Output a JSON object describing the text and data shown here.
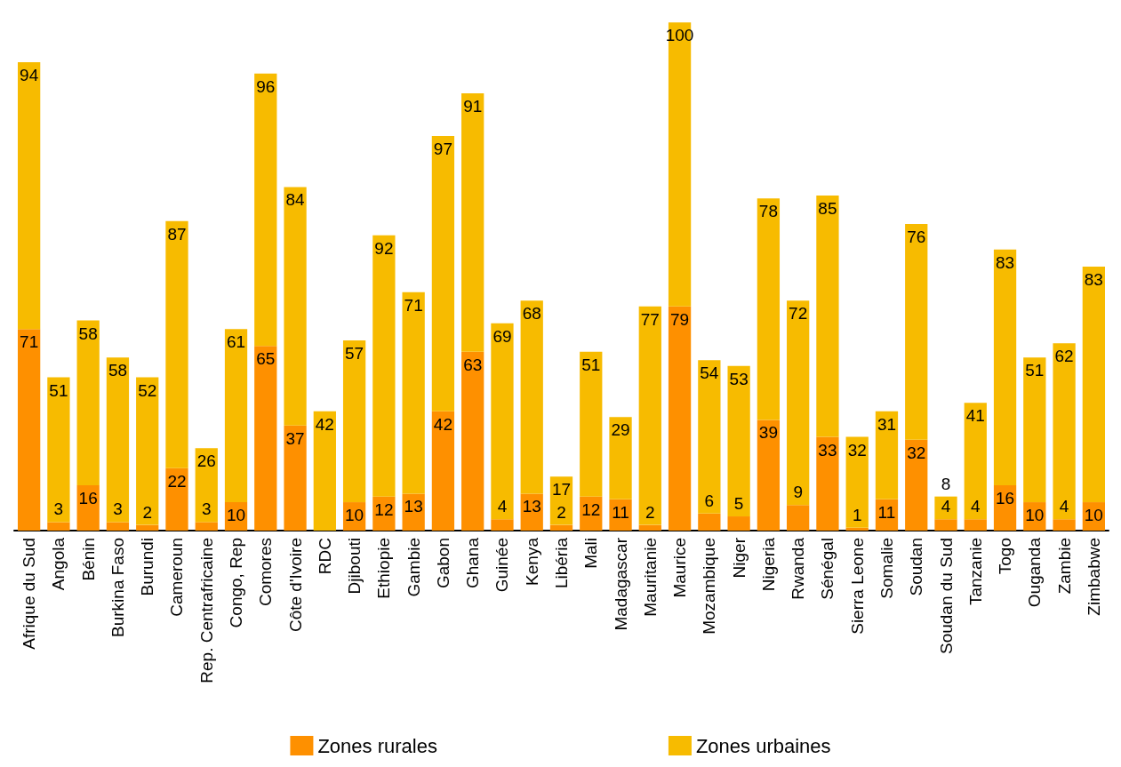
{
  "chart_data": {
    "type": "bar",
    "stacked": true,
    "data_labels": true,
    "legend": "bottom",
    "grid": false,
    "categories": [
      "Afrique du Sud",
      "Angola",
      "Bénin",
      "Burkina Faso",
      "Burundi",
      "Cameroun",
      "Rep. Centrafricaine",
      "Congo, Rep",
      "Comores",
      "Côte d'Ivoire",
      "RDC",
      "Djibouti",
      "Ethiopie",
      "Gambie",
      "Gabon",
      "Ghana",
      "Guinée",
      "Kenya",
      "Libéria",
      "Mali",
      "Madagascar",
      "Mauritanie",
      "Maurice",
      "Mozambique",
      "Niger",
      "Nigeria",
      "Rwanda",
      "Sénégal",
      "Sierra Leone",
      "Somalie",
      "Soudan",
      "Soudan du Sud",
      "Tanzanie",
      "Togo",
      "Ouganda",
      "Zambie",
      "Zimbabwe"
    ],
    "series": [
      {
        "name": "Zones rurales",
        "color": "#fe9000",
        "values": [
          71,
          3,
          16,
          3,
          2,
          22,
          3,
          10,
          65,
          37,
          null,
          10,
          12,
          13,
          42,
          63,
          4,
          13,
          2,
          12,
          11,
          2,
          79,
          6,
          5,
          39,
          9,
          33,
          1,
          11,
          32,
          4,
          4,
          16,
          10,
          4,
          10
        ]
      },
      {
        "name": "Zones urbaines",
        "color": "#f7bb00",
        "values": [
          94,
          51,
          58,
          58,
          52,
          87,
          26,
          61,
          96,
          84,
          42,
          57,
          92,
          71,
          97,
          91,
          69,
          68,
          17,
          51,
          29,
          77,
          100,
          54,
          53,
          78,
          72,
          85,
          32,
          31,
          76,
          8,
          41,
          83,
          51,
          62,
          83
        ]
      }
    ]
  }
}
